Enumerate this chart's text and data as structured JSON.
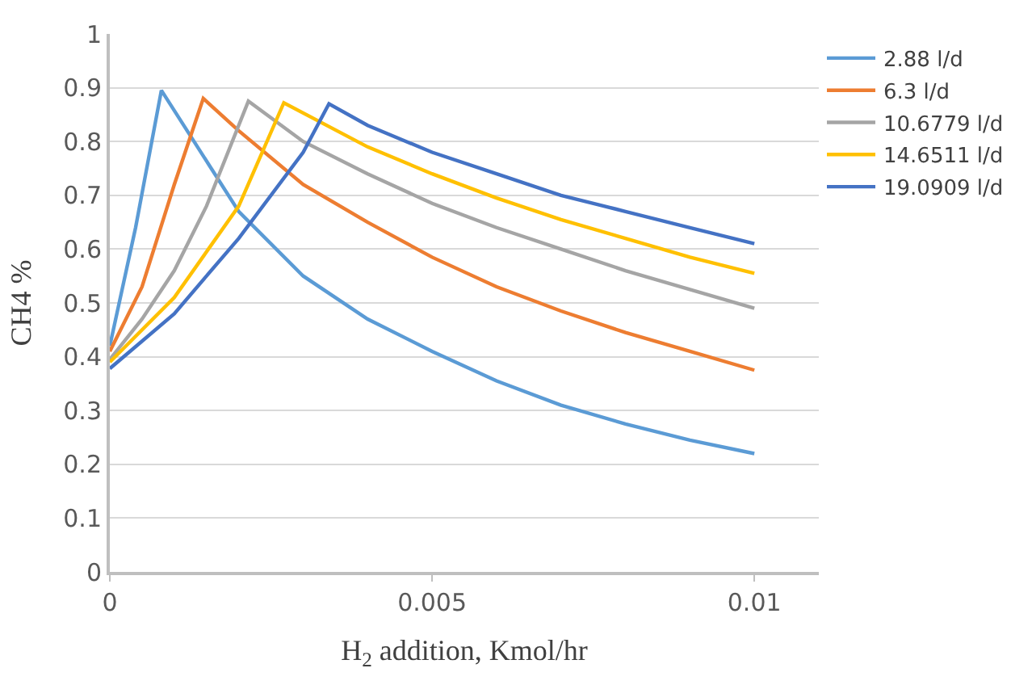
{
  "chart_data": {
    "type": "line",
    "xlabel": "H$_{2}$ addition, Kmol/hr",
    "ylabel": "CH4 %",
    "xlim": [
      0,
      0.011
    ],
    "xticks": [
      0,
      0.005,
      0.01
    ],
    "ylim": [
      0,
      1
    ],
    "yticks": [
      0,
      0.1,
      0.2,
      0.3,
      0.4,
      0.5,
      0.6,
      0.7,
      0.8,
      0.9,
      1
    ],
    "grid": "y",
    "legend": "top right",
    "marker": "none",
    "line_style": "solid",
    "series": [
      {
        "name": "2.88 l/d",
        "color": "#5b9bd5",
        "x": [
          0,
          0.0004,
          0.0008,
          0.002,
          0.003,
          0.004,
          0.005,
          0.006,
          0.007,
          0.008,
          0.009,
          0.01
        ],
        "values": [
          0.42,
          0.64,
          0.895,
          0.67,
          0.55,
          0.47,
          0.41,
          0.355,
          0.31,
          0.275,
          0.245,
          0.22
        ]
      },
      {
        "name": "6.3 l/d",
        "color": "#ed7d31",
        "x": [
          0,
          0.0005,
          0.001,
          0.00145,
          0.002,
          0.003,
          0.004,
          0.005,
          0.006,
          0.007,
          0.008,
          0.009,
          0.01
        ],
        "values": [
          0.41,
          0.53,
          0.72,
          0.88,
          0.82,
          0.72,
          0.65,
          0.585,
          0.53,
          0.485,
          0.445,
          0.41,
          0.375
        ]
      },
      {
        "name": "10.6779 l/d",
        "color": "#a5a5a5",
        "x": [
          0,
          0.0005,
          0.001,
          0.0015,
          0.00215,
          0.003,
          0.004,
          0.005,
          0.006,
          0.007,
          0.008,
          0.009,
          0.01
        ],
        "values": [
          0.395,
          0.47,
          0.56,
          0.68,
          0.875,
          0.8,
          0.74,
          0.685,
          0.64,
          0.6,
          0.56,
          0.525,
          0.49
        ]
      },
      {
        "name": "14.6511 l/d",
        "color": "#ffc000",
        "x": [
          0,
          0.001,
          0.002,
          0.0027,
          0.004,
          0.005,
          0.006,
          0.007,
          0.008,
          0.009,
          0.01
        ],
        "values": [
          0.39,
          0.51,
          0.68,
          0.872,
          0.79,
          0.74,
          0.695,
          0.655,
          0.62,
          0.585,
          0.555
        ]
      },
      {
        "name": "19.0909 l/d",
        "color": "#4472c4",
        "x": [
          0,
          0.001,
          0.002,
          0.003,
          0.0034,
          0.004,
          0.005,
          0.006,
          0.007,
          0.008,
          0.009,
          0.01
        ],
        "values": [
          0.378,
          0.48,
          0.62,
          0.78,
          0.87,
          0.83,
          0.78,
          0.74,
          0.7,
          0.67,
          0.64,
          0.61
        ]
      }
    ]
  }
}
